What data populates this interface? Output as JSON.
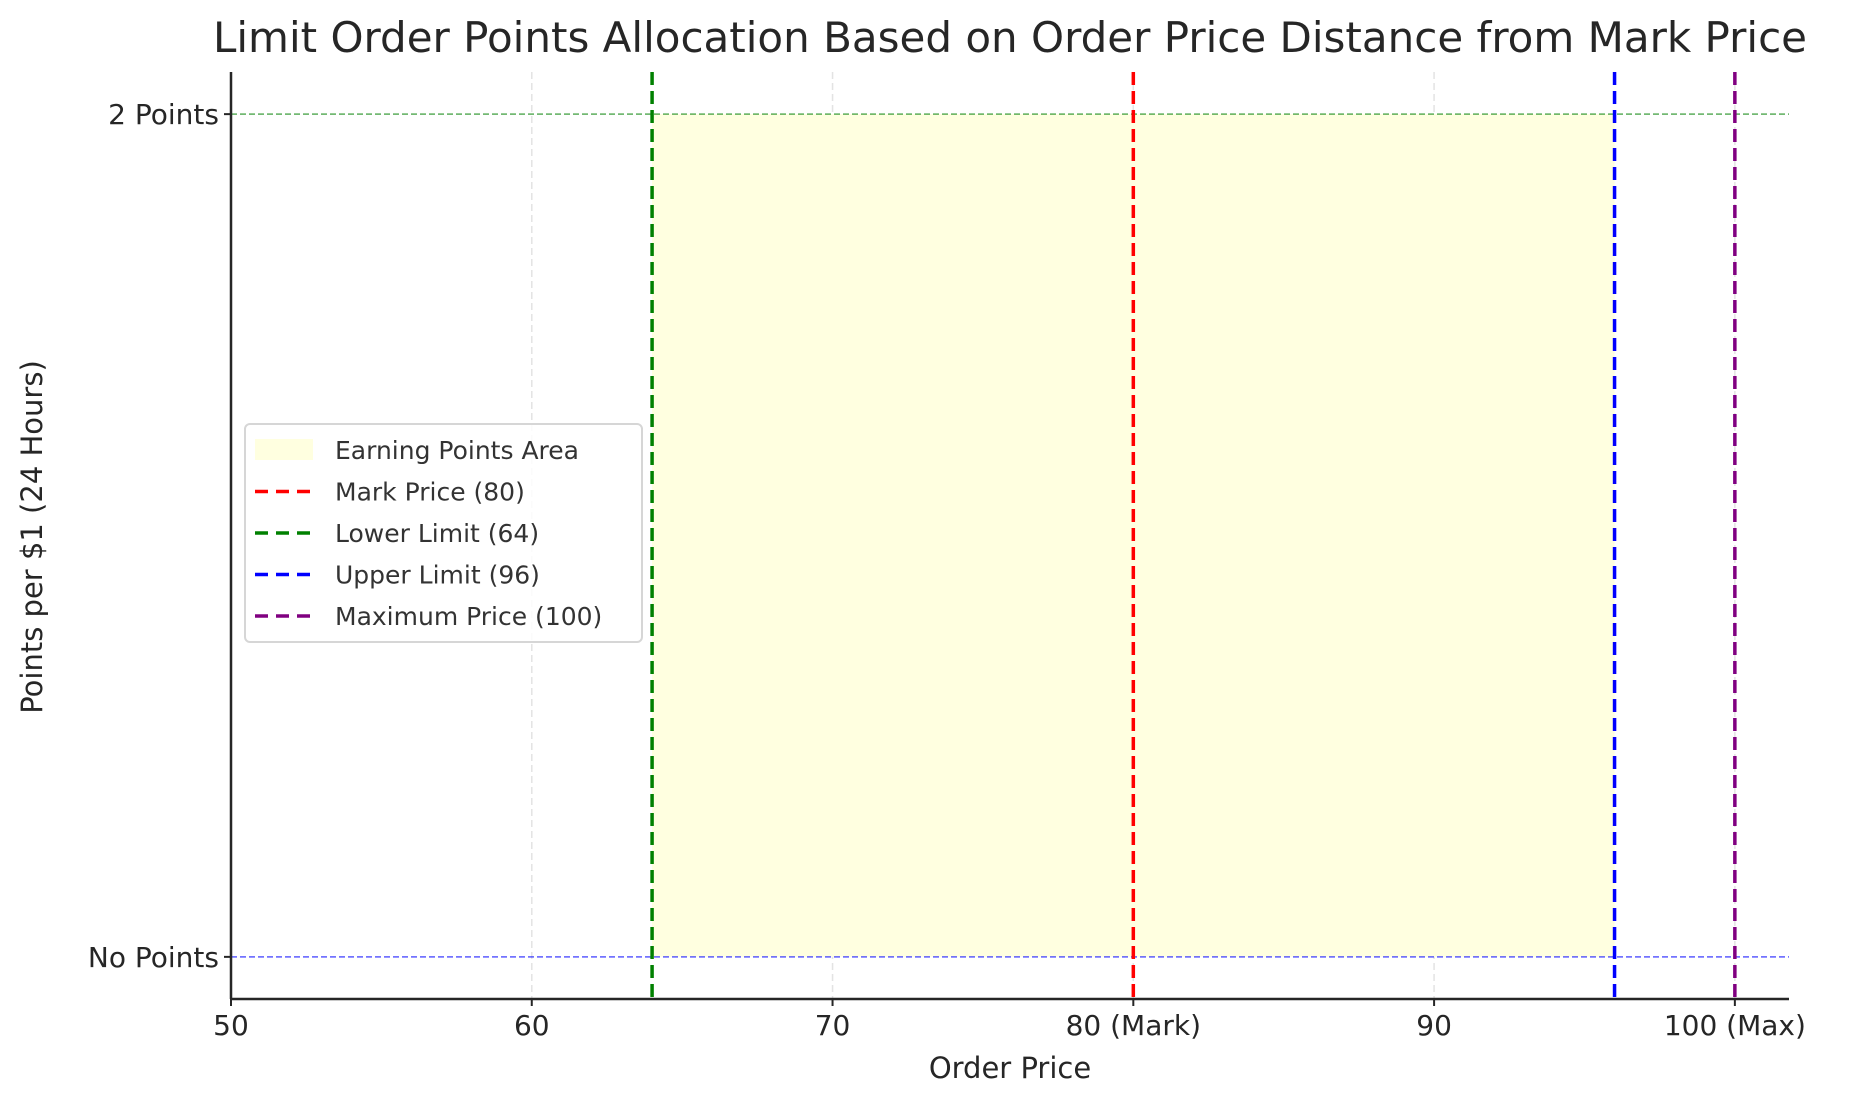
{
  "chart_data": {
    "type": "line",
    "title": "Limit Order Points Allocation Based on Order Price Distance from Mark Price",
    "xlabel": "Order Price",
    "ylabel": "Points per $1 (24 Hours)",
    "xlim": [
      50,
      101.8
    ],
    "ylim": [
      -0.1,
      2.1
    ],
    "xticks": [
      {
        "value": 50,
        "label": "50"
      },
      {
        "value": 60,
        "label": "60"
      },
      {
        "value": 70,
        "label": "70"
      },
      {
        "value": 80,
        "label": "80 (Mark)"
      },
      {
        "value": 90,
        "label": "90"
      },
      {
        "value": 100,
        "label": "100 (Max)"
      }
    ],
    "yticks": [
      {
        "value": 0,
        "label": "No Points"
      },
      {
        "value": 2,
        "label": "2 Points"
      }
    ],
    "grid": "vertical dashed",
    "legend_position": "center-left",
    "shaded_area": {
      "name": "Earning Points Area",
      "x": [
        64,
        96
      ],
      "y": [
        0,
        2
      ],
      "color": "#ffffe0"
    },
    "vertical_lines": [
      {
        "name": "Mark Price (80)",
        "x": 80,
        "color": "#ff0000"
      },
      {
        "name": "Lower Limit (64)",
        "x": 64,
        "color": "#008000"
      },
      {
        "name": "Upper Limit (96)",
        "x": 96,
        "color": "#0000ff"
      },
      {
        "name": "Maximum Price (100)",
        "x": 100,
        "color": "#800080"
      }
    ],
    "horizontal_lines": [
      {
        "y": 2,
        "color": "#008000"
      },
      {
        "y": 0,
        "color": "#0000ff"
      }
    ]
  }
}
